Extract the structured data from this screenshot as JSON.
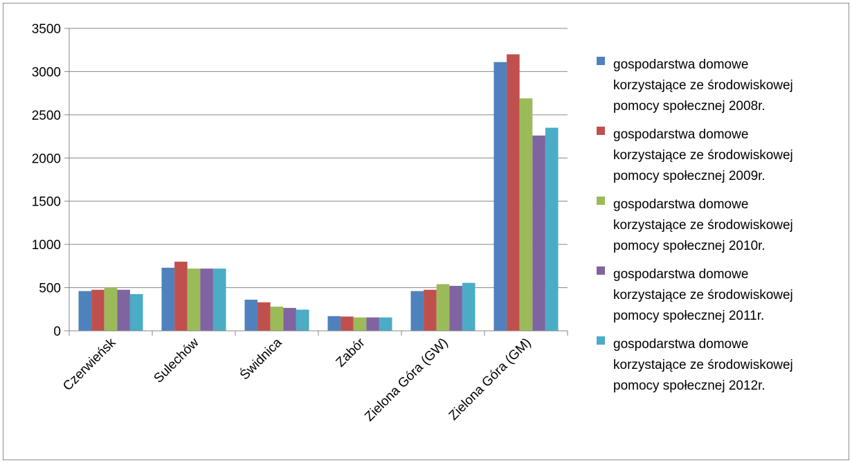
{
  "chart_data": {
    "type": "bar",
    "title": "",
    "xlabel": "",
    "ylabel": "",
    "ylim": [
      0,
      3500
    ],
    "yticks": [
      0,
      500,
      1000,
      1500,
      2000,
      2500,
      3000,
      3500
    ],
    "grid": true,
    "legend_position": "right",
    "categories": [
      "Czerwieńsk",
      "Sulechów",
      "Świdnica",
      "Zabór",
      "Zielona Góra (GW)",
      "Zielona Góra (GM)"
    ],
    "series": [
      {
        "name": "gospodarstwa domowe korzystające ze środowiskowej pomocy społecznej 2008r.",
        "name_lines": [
          "gospodarstwa domowe",
          "korzystające ze środowiskowej",
          "pomocy społecznej 2008r."
        ],
        "color": "#4f81bd",
        "values": [
          460,
          730,
          360,
          170,
          460,
          3110
        ]
      },
      {
        "name": "gospodarstwa domowe korzystające ze środowiskowej pomocy społecznej 2009r.",
        "name_lines": [
          "gospodarstwa domowe",
          "korzystające ze środowiskowej",
          "pomocy społecznej 2009r."
        ],
        "color": "#c0504d",
        "values": [
          475,
          800,
          330,
          165,
          475,
          3200
        ]
      },
      {
        "name": "gospodarstwa domowe korzystające ze środowiskowej pomocy społecznej 2010r.",
        "name_lines": [
          "gospodarstwa domowe",
          "korzystające ze środowiskowej",
          "pomocy społecznej 2010r."
        ],
        "color": "#9bbb59",
        "values": [
          500,
          720,
          280,
          155,
          540,
          2690
        ]
      },
      {
        "name": "gospodarstwa domowe korzystające ze środowiskowej pomocy społecznej 2011r.",
        "name_lines": [
          "gospodarstwa domowe",
          "korzystające ze środowiskowej",
          "pomocy społecznej 2011r."
        ],
        "color": "#8064a2",
        "values": [
          475,
          720,
          265,
          155,
          520,
          2260
        ]
      },
      {
        "name": "gospodarstwa domowe korzystające ze środowiskowej pomocy społecznej 2012r.",
        "name_lines": [
          "gospodarstwa domowe",
          "korzystające ze środowiskowej",
          "pomocy społecznej 2012r."
        ],
        "color": "#4bacc6",
        "values": [
          425,
          720,
          245,
          155,
          555,
          2350
        ]
      }
    ]
  }
}
